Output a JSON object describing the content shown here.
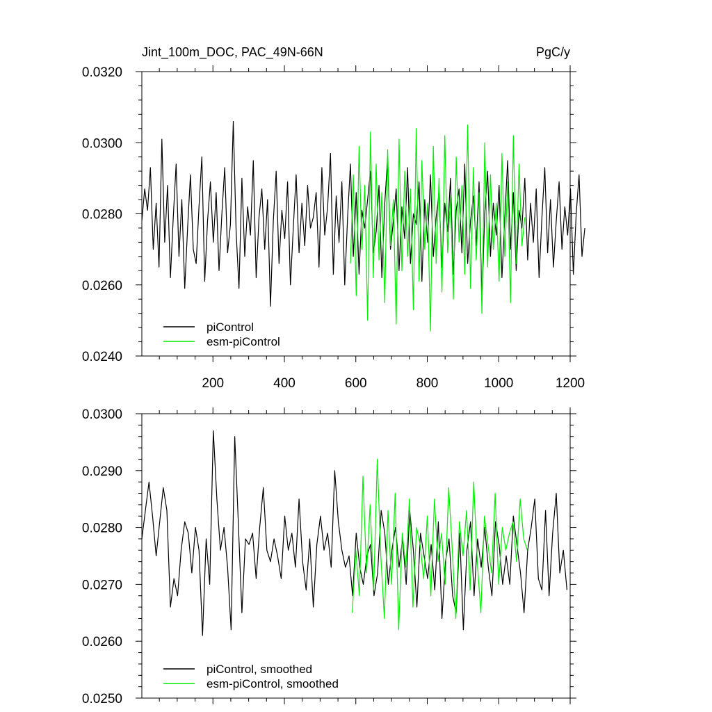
{
  "chart_data": [
    {
      "type": "line",
      "title_left": "Jint_100m_DOC, PAC_49N-66N",
      "title_right": "PgC/y",
      "xlim": [
        1,
        1200
      ],
      "ylim": [
        0.024,
        0.032
      ],
      "xticks": [
        200,
        400,
        600,
        800,
        1000,
        1200
      ],
      "xtick_labels": [
        "200",
        "400",
        "600",
        "800",
        "1000",
        "1200"
      ],
      "yticks": [
        0.024,
        0.026,
        0.028,
        0.03,
        0.032
      ],
      "ytick_labels": [
        "0.0240",
        "0.0260",
        "0.0280",
        "0.0300",
        "0.0320"
      ],
      "legend_position": "bottom-left",
      "series": [
        {
          "name": "piControl",
          "color": "#000000",
          "x_start": 1,
          "x_step": 8,
          "values": [
            0.0278,
            0.0287,
            0.0281,
            0.0293,
            0.027,
            0.0283,
            0.0265,
            0.0301,
            0.0272,
            0.0288,
            0.0262,
            0.0279,
            0.0294,
            0.0268,
            0.0284,
            0.0259,
            0.0276,
            0.0291,
            0.027,
            0.0266,
            0.0282,
            0.0296,
            0.0261,
            0.0278,
            0.0289,
            0.0272,
            0.0286,
            0.0264,
            0.028,
            0.0293,
            0.0269,
            0.0277,
            0.0306,
            0.0275,
            0.0259,
            0.029,
            0.0268,
            0.0282,
            0.0274,
            0.0295,
            0.0262,
            0.0279,
            0.0287,
            0.027,
            0.0284,
            0.0254,
            0.0278,
            0.0292,
            0.0266,
            0.0281,
            0.0273,
            0.0289,
            0.026,
            0.0276,
            0.0291,
            0.0269,
            0.0283,
            0.0271,
            0.0288,
            0.0276,
            0.0279,
            0.0286,
            0.0265,
            0.0293,
            0.0274,
            0.0282,
            0.0297,
            0.0263,
            0.0285,
            0.0272,
            0.0289,
            0.026,
            0.0279,
            0.0294,
            0.0268,
            0.0286,
            0.0263,
            0.0281,
            0.0276,
            0.0284,
            0.0292,
            0.0269,
            0.0275,
            0.0288,
            0.0262,
            0.0283,
            0.0296,
            0.027,
            0.0278,
            0.0287,
            0.0264,
            0.0282,
            0.0273,
            0.0293,
            0.0266,
            0.028,
            0.0277,
            0.0289,
            0.0261,
            0.0284,
            0.0272,
            0.0291,
            0.0268,
            0.0279,
            0.0286,
            0.0265,
            0.0283,
            0.0275,
            0.029,
            0.0263,
            0.0281,
            0.0287,
            0.0269,
            0.0294,
            0.0266,
            0.0278,
            0.0285,
            0.0271,
            0.0289,
            0.0256,
            0.028,
            0.0292,
            0.0268,
            0.0283,
            0.0274,
            0.0288,
            0.0262,
            0.0279,
            0.0295,
            0.027,
            0.0286,
            0.0264,
            0.0281,
            0.0276,
            0.029,
            0.0267,
            0.0283,
            0.0272,
            0.0287,
            0.0262,
            0.0279,
            0.0293,
            0.0269,
            0.0284,
            0.0265,
            0.0278,
            0.0289,
            0.027,
            0.0282,
            0.0274,
            0.0287,
            0.0263,
            0.028,
            0.0291,
            0.0268,
            0.0276
          ]
        },
        {
          "name": "esm-piControl",
          "color": "#00ee00",
          "x_start": 585,
          "x_step": 8,
          "values": [
            0.0266,
            0.0291,
            0.0257,
            0.0299,
            0.027,
            0.0288,
            0.025,
            0.0303,
            0.0262,
            0.0294,
            0.0267,
            0.0286,
            0.0255,
            0.0298,
            0.0271,
            0.0284,
            0.0249,
            0.0301,
            0.0264,
            0.0292,
            0.0268,
            0.0287,
            0.0253,
            0.0304,
            0.0261,
            0.0295,
            0.027,
            0.0283,
            0.0247,
            0.0299,
            0.0266,
            0.029,
            0.0258,
            0.0302,
            0.0269,
            0.0285,
            0.0256,
            0.0296,
            0.0272,
            0.0288,
            0.0263,
            0.0305,
            0.0259,
            0.0293,
            0.0267,
            0.0286,
            0.0252,
            0.03,
            0.0265,
            0.0291,
            0.027,
            0.0283,
            0.0261,
            0.0297,
            0.0268,
            0.0289,
            0.0255,
            0.0302,
            0.0266,
            0.0294,
            0.0271,
            0.0279
          ]
        }
      ]
    },
    {
      "type": "line",
      "xlim": [
        1,
        1200
      ],
      "ylim": [
        0.025,
        0.03
      ],
      "xticks": [
        200,
        400,
        600,
        800,
        1000,
        1200
      ],
      "yticks": [
        0.025,
        0.026,
        0.027,
        0.028,
        0.029,
        0.03
      ],
      "ytick_labels": [
        "0.0250",
        "0.0260",
        "0.0270",
        "0.0280",
        "0.0290",
        "0.0300"
      ],
      "legend_position": "bottom-left",
      "series": [
        {
          "name": "piControl, smoothed",
          "color": "#000000",
          "x_start": 1,
          "x_step": 10,
          "values": [
            0.0278,
            0.0283,
            0.0288,
            0.0282,
            0.0275,
            0.0281,
            0.0287,
            0.0283,
            0.0266,
            0.0271,
            0.0268,
            0.0276,
            0.0281,
            0.0279,
            0.0272,
            0.028,
            0.0276,
            0.0261,
            0.0278,
            0.027,
            0.0297,
            0.0285,
            0.0276,
            0.028,
            0.0273,
            0.0262,
            0.0296,
            0.0281,
            0.0265,
            0.0278,
            0.0277,
            0.0279,
            0.0271,
            0.028,
            0.0287,
            0.0276,
            0.0274,
            0.0278,
            0.0275,
            0.0271,
            0.0282,
            0.0276,
            0.0279,
            0.0273,
            0.0285,
            0.0274,
            0.0269,
            0.0278,
            0.0266,
            0.0277,
            0.0282,
            0.0276,
            0.0279,
            0.0273,
            0.029,
            0.0281,
            0.0276,
            0.0273,
            0.0275,
            0.0268,
            0.0279,
            0.0273,
            0.027,
            0.0275,
            0.0277,
            0.0268,
            0.0272,
            0.0283,
            0.0279,
            0.027,
            0.0276,
            0.028,
            0.0273,
            0.0278,
            0.027,
            0.0283,
            0.0276,
            0.0266,
            0.0279,
            0.0275,
            0.0271,
            0.0277,
            0.0269,
            0.0281,
            0.0264,
            0.0274,
            0.0278,
            0.0268,
            0.0265,
            0.0279,
            0.0262,
            0.0276,
            0.0281,
            0.0268,
            0.0278,
            0.0273,
            0.028,
            0.0273,
            0.0268,
            0.0281,
            0.0277,
            0.027,
            0.0275,
            0.027,
            0.0282,
            0.0277,
            0.0272,
            0.0265,
            0.0276,
            0.028,
            0.0285,
            0.0271,
            0.0269,
            0.0283,
            0.0268,
            0.0279,
            0.0286,
            0.0272,
            0.0276,
            0.0269
          ]
        },
        {
          "name": "esm-piControl, smoothed",
          "color": "#00ee00",
          "x_start": 590,
          "x_step": 10,
          "values": [
            0.0265,
            0.0276,
            0.0268,
            0.0289,
            0.0272,
            0.0284,
            0.0269,
            0.0292,
            0.0275,
            0.0264,
            0.0283,
            0.027,
            0.0286,
            0.0262,
            0.0279,
            0.0273,
            0.0285,
            0.0266,
            0.028,
            0.0277,
            0.0271,
            0.0282,
            0.0268,
            0.0285,
            0.0274,
            0.0279,
            0.027,
            0.0287,
            0.0276,
            0.0264,
            0.0281,
            0.0275,
            0.0283,
            0.0269,
            0.0288,
            0.0274,
            0.0265,
            0.0282,
            0.0277,
            0.0272,
            0.0286,
            0.027,
            0.028,
            0.0276,
            0.0279,
            0.0281,
            0.0274,
            0.0285,
            0.0278,
            0.0276
          ]
        }
      ]
    }
  ]
}
